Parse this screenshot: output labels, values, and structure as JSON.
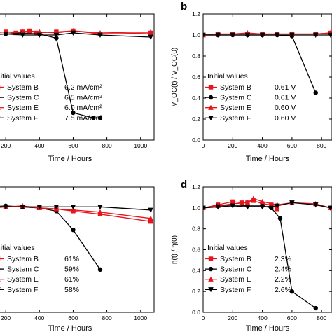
{
  "chart_data": [
    {
      "type": "line",
      "panel_label": "",
      "xlabel": "Time / Hours",
      "ylabel": "",
      "xlim": [
        0,
        1080
      ],
      "ylim": [
        0,
        1.2
      ],
      "xticks": [
        200,
        400,
        600,
        800,
        1000
      ],
      "yticks": [],
      "legend_title": "Initial values",
      "series": [
        {
          "name": "System B",
          "value": "6.2 mA/cm²",
          "color": "#e8141b",
          "marker": "square",
          "points": [
            [
              0,
              1.0
            ],
            [
              100,
              1.02
            ],
            [
              200,
              1.03
            ],
            [
              260,
              1.02
            ],
            [
              300,
              1.03
            ],
            [
              340,
              1.04
            ],
            [
              380,
              1.02
            ],
            [
              500,
              1.03
            ],
            [
              600,
              1.04
            ],
            [
              760,
              1.01
            ],
            [
              1060,
              1.02
            ]
          ]
        },
        {
          "name": "System C",
          "value": "6.5 mA/cm²",
          "color": "#000000",
          "marker": "circle",
          "points": [
            [
              0,
              1.0
            ],
            [
              100,
              1.01
            ],
            [
              200,
              1.01
            ],
            [
              300,
              1.02
            ],
            [
              400,
              1.01
            ],
            [
              500,
              0.97
            ],
            [
              600,
              0.26
            ],
            [
              720,
              0.21
            ],
            [
              760,
              0.21
            ]
          ]
        },
        {
          "name": "System E",
          "value": "6.0 mA/cm²",
          "color": "#e8141b",
          "marker": "triangle-up",
          "points": [
            [
              0,
              1.0
            ],
            [
              100,
              1.02
            ],
            [
              200,
              1.03
            ],
            [
              300,
              1.03
            ],
            [
              340,
              1.04
            ],
            [
              400,
              1.03
            ],
            [
              500,
              1.02
            ],
            [
              600,
              1.04
            ],
            [
              760,
              1.02
            ],
            [
              1060,
              1.03
            ]
          ]
        },
        {
          "name": "System F",
          "value": "7.5 mA/cm²",
          "color": "#000000",
          "marker": "triangle-down",
          "points": [
            [
              0,
              1.0
            ],
            [
              100,
              1.0
            ],
            [
              200,
              1.01
            ],
            [
              300,
              1.0
            ],
            [
              400,
              1.0
            ],
            [
              500,
              1.0
            ],
            [
              600,
              1.02
            ],
            [
              760,
              1.0
            ],
            [
              1060,
              0.98
            ]
          ]
        }
      ]
    },
    {
      "type": "line",
      "panel_label": "b",
      "xlabel": "Time / Hours",
      "ylabel": "V_OC(t) / V_OC(0)",
      "xlim": [
        0,
        870
      ],
      "ylim": [
        0,
        1.2
      ],
      "xticks": [
        0,
        200,
        400,
        600,
        800
      ],
      "yticks": [
        0.0,
        0.2,
        0.4,
        0.6,
        0.8,
        1.0,
        1.2
      ],
      "legend_title": "Initial values",
      "series": [
        {
          "name": "System B",
          "value": "0.61 V",
          "color": "#e8141b",
          "marker": "square",
          "points": [
            [
              0,
              1.0
            ],
            [
              100,
              1.01
            ],
            [
              200,
              1.01
            ],
            [
              300,
              1.01
            ],
            [
              400,
              1.01
            ],
            [
              500,
              1.01
            ],
            [
              600,
              1.01
            ],
            [
              760,
              1.01
            ],
            [
              860,
              1.02
            ]
          ]
        },
        {
          "name": "System C",
          "value": "0.61 V",
          "color": "#000000",
          "marker": "circle",
          "points": [
            [
              0,
              1.0
            ],
            [
              100,
              1.0
            ],
            [
              200,
              1.0
            ],
            [
              300,
              1.0
            ],
            [
              400,
              1.0
            ],
            [
              500,
              1.0
            ],
            [
              600,
              0.99
            ],
            [
              760,
              0.45
            ]
          ]
        },
        {
          "name": "System E",
          "value": "0.60 V",
          "color": "#e8141b",
          "marker": "triangle-up",
          "points": [
            [
              0,
              1.0
            ],
            [
              100,
              1.01
            ],
            [
              200,
              1.01
            ],
            [
              300,
              1.02
            ],
            [
              400,
              1.01
            ],
            [
              500,
              1.01
            ],
            [
              600,
              1.01
            ],
            [
              760,
              1.01
            ],
            [
              860,
              1.02
            ]
          ]
        },
        {
          "name": "System F",
          "value": "0.60 V",
          "color": "#000000",
          "marker": "triangle-down",
          "points": [
            [
              0,
              1.0
            ],
            [
              100,
              1.0
            ],
            [
              200,
              1.0
            ],
            [
              300,
              1.0
            ],
            [
              400,
              1.0
            ],
            [
              500,
              1.0
            ],
            [
              600,
              1.0
            ],
            [
              760,
              1.0
            ],
            [
              860,
              1.0
            ]
          ]
        }
      ]
    },
    {
      "type": "line",
      "panel_label": "",
      "xlabel": "Time / Hours",
      "ylabel": "",
      "xlim": [
        0,
        1080
      ],
      "ylim": [
        0,
        1.2
      ],
      "xticks": [
        200,
        400,
        600,
        800,
        1000
      ],
      "yticks": [],
      "legend_title": "Initial values",
      "series": [
        {
          "name": "System B",
          "value": "61%",
          "color": "#e8141b",
          "marker": "square",
          "points": [
            [
              0,
              1.0
            ],
            [
              100,
              1.01
            ],
            [
              200,
              1.01
            ],
            [
              300,
              1.01
            ],
            [
              400,
              1.0
            ],
            [
              500,
              0.99
            ],
            [
              600,
              0.97
            ],
            [
              760,
              0.94
            ],
            [
              1060,
              0.87
            ]
          ]
        },
        {
          "name": "System C",
          "value": "59%",
          "color": "#000000",
          "marker": "circle",
          "points": [
            [
              0,
              1.0
            ],
            [
              100,
              1.01
            ],
            [
              200,
              1.02
            ],
            [
              300,
              1.01
            ],
            [
              400,
              1.0
            ],
            [
              500,
              0.97
            ],
            [
              600,
              0.79
            ],
            [
              760,
              0.41
            ]
          ]
        },
        {
          "name": "System E",
          "value": "61%",
          "color": "#e8141b",
          "marker": "triangle-up",
          "points": [
            [
              0,
              1.0
            ],
            [
              100,
              1.01
            ],
            [
              200,
              1.01
            ],
            [
              300,
              1.02
            ],
            [
              400,
              1.0
            ],
            [
              500,
              0.99
            ],
            [
              600,
              0.98
            ],
            [
              760,
              0.96
            ],
            [
              1060,
              0.9
            ]
          ]
        },
        {
          "name": "System F",
          "value": "58%",
          "color": "#000000",
          "marker": "triangle-down",
          "points": [
            [
              0,
              1.0
            ],
            [
              100,
              1.0
            ],
            [
              200,
              1.01
            ],
            [
              300,
              1.01
            ],
            [
              400,
              1.01
            ],
            [
              500,
              1.01
            ],
            [
              600,
              1.01
            ],
            [
              760,
              1.01
            ],
            [
              1060,
              0.98
            ]
          ]
        }
      ]
    },
    {
      "type": "line",
      "panel_label": "d",
      "xlabel": "Time / Hours",
      "ylabel": "η(t) / η(0)",
      "xlim": [
        0,
        870
      ],
      "ylim": [
        0,
        1.2
      ],
      "xticks": [
        0,
        200,
        400,
        600,
        800
      ],
      "yticks": [
        0.0,
        0.2,
        0.4,
        0.6,
        0.8,
        1.0,
        1.2
      ],
      "legend_title": "Initial values",
      "series": [
        {
          "name": "System B",
          "value": "2.3%",
          "color": "#e8141b",
          "marker": "square",
          "points": [
            [
              0,
              1.0
            ],
            [
              100,
              1.03
            ],
            [
              200,
              1.06
            ],
            [
              260,
              1.05
            ],
            [
              300,
              1.05
            ],
            [
              340,
              1.07
            ],
            [
              400,
              1.04
            ],
            [
              460,
              1.03
            ],
            [
              500,
              0.99
            ]
          ]
        },
        {
          "name": "System C",
          "value": "2.4%",
          "color": "#000000",
          "marker": "circle",
          "points": [
            [
              0,
              1.0
            ],
            [
              100,
              1.02
            ],
            [
              200,
              1.03
            ],
            [
              300,
              1.02
            ],
            [
              400,
              1.02
            ],
            [
              460,
              1.0
            ],
            [
              520,
              0.9
            ],
            [
              600,
              0.2
            ],
            [
              760,
              0.04
            ]
          ]
        },
        {
          "name": "System E",
          "value": "2.2%",
          "color": "#e8141b",
          "marker": "triangle-up",
          "points": [
            [
              0,
              1.0
            ],
            [
              100,
              1.02
            ],
            [
              200,
              1.04
            ],
            [
              300,
              1.05
            ],
            [
              340,
              1.09
            ],
            [
              400,
              1.06
            ],
            [
              500,
              1.03
            ],
            [
              600,
              1.05
            ],
            [
              760,
              1.04
            ],
            [
              860,
              1.0
            ]
          ]
        },
        {
          "name": "System F",
          "value": "2.6%",
          "color": "#000000",
          "marker": "triangle-down",
          "points": [
            [
              0,
              1.0
            ],
            [
              100,
              1.01
            ],
            [
              200,
              1.02
            ],
            [
              300,
              1.01
            ],
            [
              400,
              1.01
            ],
            [
              500,
              1.02
            ],
            [
              600,
              1.05
            ],
            [
              760,
              1.03
            ],
            [
              860,
              1.0
            ]
          ]
        }
      ]
    }
  ]
}
